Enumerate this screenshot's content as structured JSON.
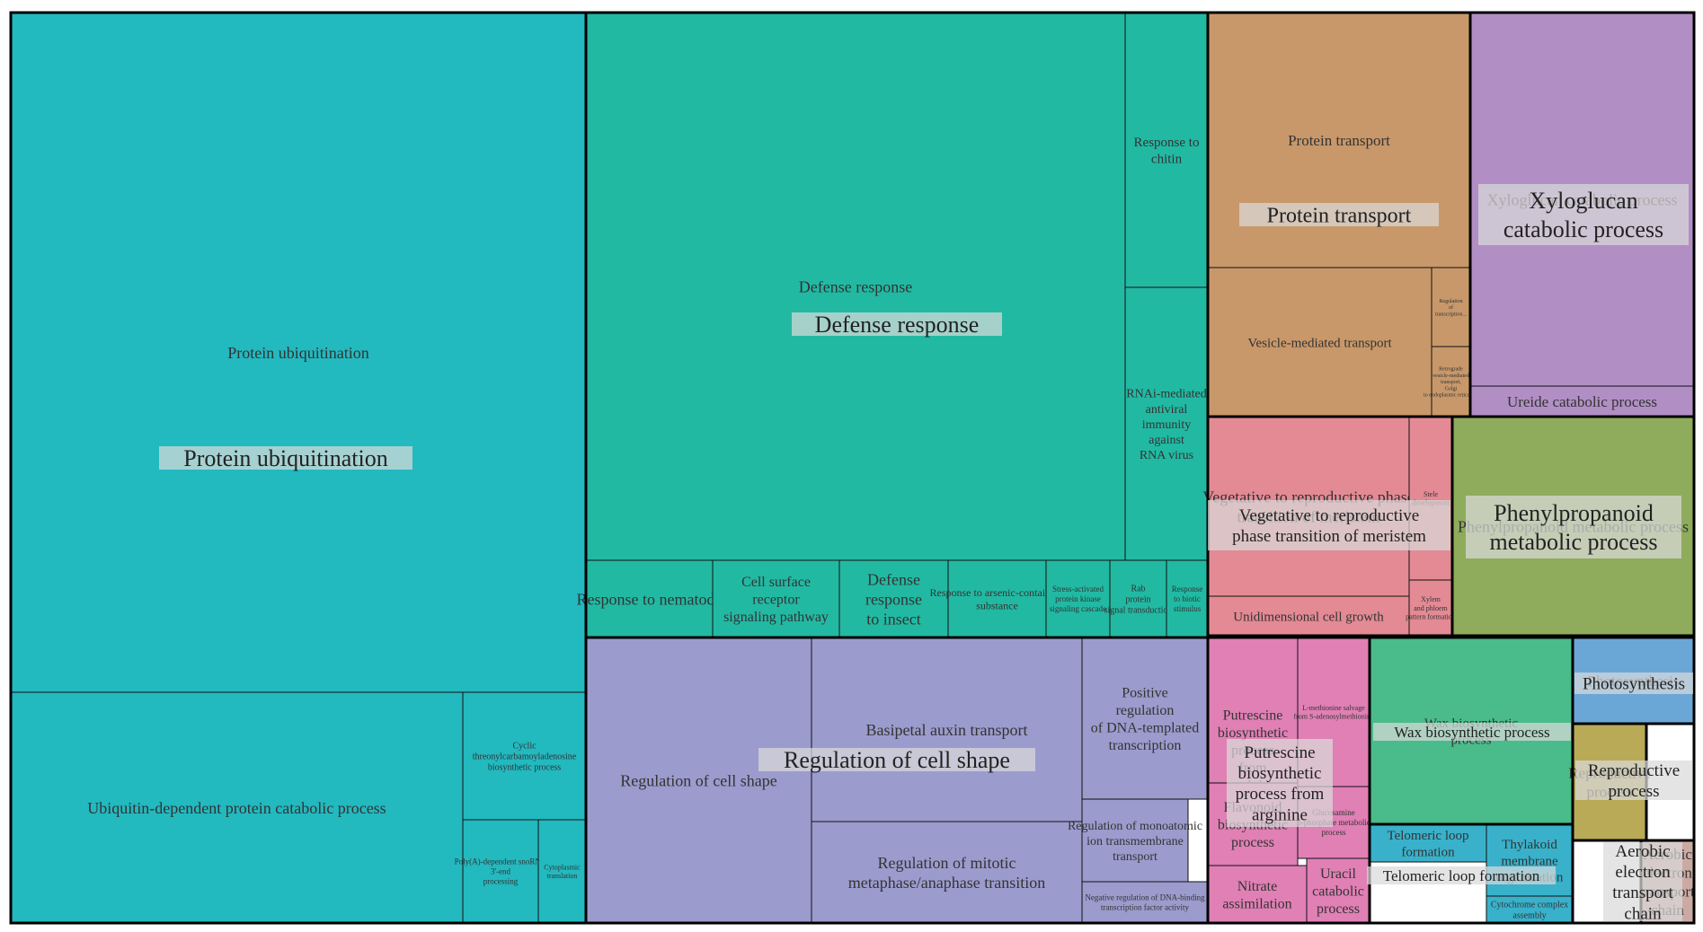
{
  "chart_data": {
    "type": "treemap",
    "title": "",
    "groups": [
      {
        "name": "Protein ubiquitination",
        "color": "#22b9bf",
        "terms": [
          "Protein ubiquitination",
          "Ubiquitin-dependent protein catabolic process",
          "Cyclic threonylcarbamoyladenosine biosynthetic process",
          "Poly(A)-dependent snoRNA 3'-end processing",
          "Cytoplasmic translation"
        ]
      },
      {
        "name": "Defense response",
        "color": "#22b9a3",
        "terms": [
          "Defense response",
          "Response to chitin",
          "RNAi-mediated antiviral immunity against RNA virus",
          "Response to nematode",
          "Cell surface receptor signaling pathway",
          "Defense response to insect",
          "Response to arsenic-containing substance",
          "Stress-activated protein kinase signaling cascade",
          "Rab protein signal transduction",
          "Response to biotic stimulus"
        ]
      },
      {
        "name": "Protein transport",
        "color": "#c8986a",
        "terms": [
          "Protein transport",
          "Vesicle-mediated transport",
          "Regulation of transcription...",
          "Retrograde vesicle-mediated transport, Golgi to endoplasmic reticulum"
        ]
      },
      {
        "name": "Xyloglucan catabolic process",
        "color": "#b18fc4",
        "terms": [
          "Xyloglucan catabolic process",
          "Ureide catabolic process"
        ]
      },
      {
        "name": "Vegetative to reproductive phase transition of meristem",
        "color": "#e38a94",
        "terms": [
          "Vegetative to reproductive phase transition of meristem",
          "Unidimensional cell growth",
          "Stele development",
          "Xylem and phloem pattern formation"
        ]
      },
      {
        "name": "Phenylpropanoid metabolic process",
        "color": "#8fab5c",
        "terms": [
          "Phenylpropanoid metabolic process"
        ]
      },
      {
        "name": "Regulation of cell shape",
        "color": "#9b9bcd",
        "terms": [
          "Regulation of cell shape",
          "Basipetal auxin transport",
          "Positive regulation of DNA-templated transcription",
          "Regulation of mitotic metaphase/anaphase transition",
          "Regulation of monoatomic ion transmembrane transport",
          "Negative regulation of DNA-binding transcription factor activity"
        ]
      },
      {
        "name": "Putrescine biosynthetic process from arginine",
        "color": "#e080b5",
        "terms": [
          "Putrescine biosynthetic process from arginine",
          "L-methionine salvage from S-adenosylmethionine",
          "Flavonoid biosynthetic process",
          "Glucosamine 6-phosphate metabolic process",
          "Nitrate assimilation",
          "Uracil catabolic process"
        ]
      },
      {
        "name": "Wax biosynthetic process",
        "color": "#4abb8a",
        "terms": [
          "Wax biosynthetic process"
        ]
      },
      {
        "name": "Telomeric loop formation",
        "color": "#39b1cb",
        "terms": [
          "Telomeric loop formation",
          "Thylakoid membrane organization",
          "Cytochrome complex assembly"
        ]
      },
      {
        "name": "Photosynthesis",
        "color": "#6aa7d7",
        "terms": [
          "Photosynthesis"
        ]
      },
      {
        "name": "Reproductive process",
        "color": "#b8aa57",
        "terms": [
          "Reproductive process"
        ]
      },
      {
        "name": "Aerobic electron transport chain",
        "color": "#ccaaa4",
        "terms": [
          "Aerobic electron transport chain"
        ]
      }
    ]
  }
}
